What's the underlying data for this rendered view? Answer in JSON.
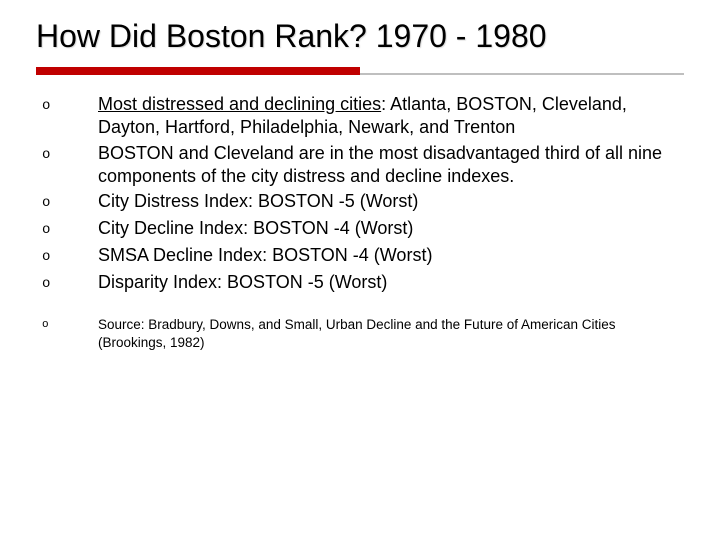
{
  "slide": {
    "title": "How Did Boston Rank? 1970 - 1980",
    "bullet_marker": "o",
    "rule_color_red": "#c00000",
    "rule_color_gray": "#bfbfbf",
    "background_color": "#ffffff",
    "title_fontsize": 32,
    "body_fontsize": 18,
    "source_fontsize": 13.5,
    "bullets": [
      {
        "prefix_underlined": "Most distressed and declining cities",
        "rest": ": Atlanta, BOSTON, Cleveland, Dayton, Hartford, Philadelphia, Newark, and Trenton"
      },
      {
        "text": "BOSTON and Cleveland are in the most disadvantaged third of all nine components of the city distress and decline indexes."
      },
      {
        "text": "City Distress Index:  BOSTON  -5 (Worst)"
      },
      {
        "text": "City Decline Index:  BOSTON  -4 (Worst)"
      },
      {
        "text": "SMSA Decline Index: BOSTON -4 (Worst)"
      },
      {
        "text": "Disparity Index:  BOSTON  -5 (Worst)"
      }
    ],
    "source": {
      "text": "Source: Bradbury, Downs, and Small, Urban Decline and the Future of American Cities (Brookings, 1982)"
    }
  }
}
